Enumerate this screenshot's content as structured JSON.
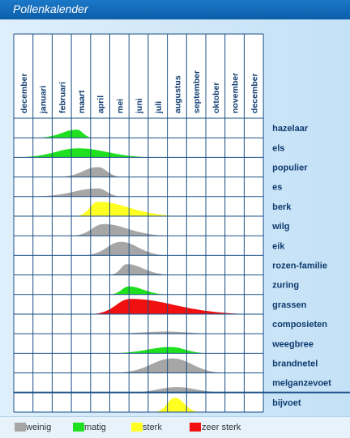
{
  "title": "Pollenkalender",
  "colors": {
    "weinig": "#a6a6a6",
    "matig": "#1ee01e",
    "sterk": "#ffff22",
    "zeer_sterk": "#f01010",
    "grid": "#1a4f86",
    "plant_label": "#0d3a6e"
  },
  "legend": [
    {
      "label": "weinig",
      "color": "#a6a6a6"
    },
    {
      "label": "matig",
      "color": "#1ee01e"
    },
    {
      "label": "sterk",
      "color": "#ffff22"
    },
    {
      "label": "zeer sterk",
      "color": "#f01010"
    }
  ],
  "chart_data": {
    "type": "area",
    "columns": [
      "december",
      "januari",
      "februari",
      "maart",
      "april",
      "mei",
      "juni",
      "juli",
      "augustus",
      "september",
      "oktober",
      "november",
      "december"
    ],
    "intensity_scale": [
      "weinig",
      "matig",
      "sterk",
      "zeer sterk"
    ],
    "series": [
      {
        "name": "hazelaar",
        "color": "matig",
        "start": 1.2,
        "end": 4.1,
        "peak": 3.3,
        "height": 0.45
      },
      {
        "name": "els",
        "color": "matig",
        "start": 0.1,
        "end": 7.3,
        "peak": 3.4,
        "height": 0.5
      },
      {
        "name": "populier",
        "color": "weinig",
        "start": 2.3,
        "end": 5.6,
        "peak": 4.4,
        "height": 0.55
      },
      {
        "name": "es",
        "color": "weinig",
        "start": 1.0,
        "end": 5.6,
        "peak": 4.4,
        "height": 0.45
      },
      {
        "name": "berk",
        "color": "sterk",
        "start": 3.2,
        "end": 8.8,
        "peak": 4.4,
        "height": 0.8
      },
      {
        "name": "wilg",
        "color": "weinig",
        "start": 3.0,
        "end": 8.1,
        "peak": 4.7,
        "height": 0.65
      },
      {
        "name": "eik",
        "color": "weinig",
        "start": 3.6,
        "end": 8.0,
        "peak": 5.6,
        "height": 0.75
      },
      {
        "name": "rozen-familie",
        "color": "weinig",
        "start": 5.0,
        "end": 8.2,
        "peak": 5.9,
        "height": 0.6
      },
      {
        "name": "zuring",
        "color": "matig",
        "start": 5.0,
        "end": 8.0,
        "peak": 6.0,
        "height": 0.45
      },
      {
        "name": "grassen",
        "color": "zeer sterk",
        "start": 4.0,
        "end": 12.4,
        "peak": 6.1,
        "height": 0.85
      },
      {
        "name": "composieten",
        "color": "weinig",
        "start": 5.0,
        "end": 10.3,
        "peak": 8.0,
        "height": 0.12
      },
      {
        "name": "weegbree",
        "color": "matig",
        "start": 5.0,
        "end": 10.1,
        "peak": 8.2,
        "height": 0.35
      },
      {
        "name": "brandnetel",
        "color": "weinig",
        "start": 5.2,
        "end": 11.0,
        "peak": 8.3,
        "height": 0.8
      },
      {
        "name": "melganzevoet",
        "color": "weinig",
        "start": 6.0,
        "end": 11.0,
        "peak": 8.5,
        "height": 0.3
      },
      {
        "name": "bijvoet",
        "color": "sterk",
        "start": 7.3,
        "end": 9.7,
        "peak": 8.4,
        "height": 0.8
      }
    ]
  }
}
